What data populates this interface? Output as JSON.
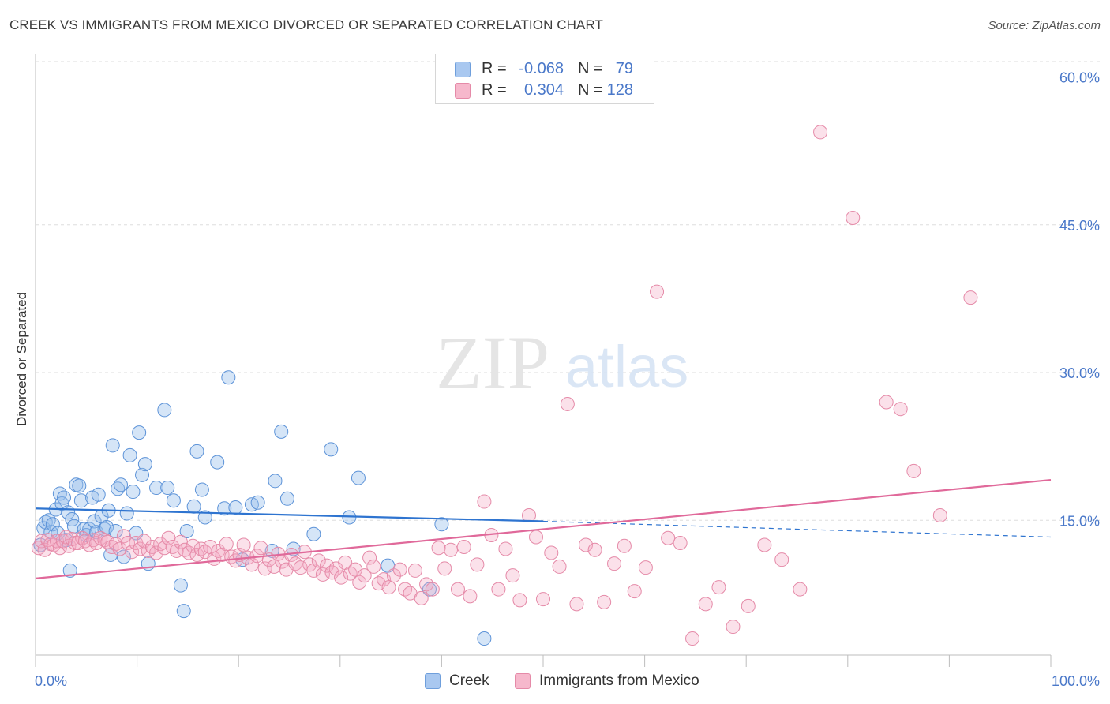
{
  "title": "CREEK VS IMMIGRANTS FROM MEXICO DIVORCED OR SEPARATED CORRELATION CHART",
  "source": "Source: ZipAtlas.com",
  "watermark": {
    "zip": "ZIP",
    "atlas": "atlas"
  },
  "legend": {
    "rows": [
      {
        "r_label": "R =",
        "r_value": "-0.068",
        "n_label": "N =",
        "n_value": "79",
        "color": "#a9c8f0",
        "border": "#6f9fdc"
      },
      {
        "r_label": "R =",
        "r_value": "0.304",
        "n_label": "N =",
        "n_value": "128",
        "color": "#f6b8cc",
        "border": "#e58aa8"
      }
    ]
  },
  "bottom_legend": [
    {
      "label": "Creek",
      "color": "#a9c8f0",
      "border": "#6f9fdc"
    },
    {
      "label": "Immigrants from Mexico",
      "color": "#f6b8cc",
      "border": "#e58aa8"
    }
  ],
  "colors": {
    "creek_line": "#2e74d0",
    "mexico_line": "#e0699a",
    "creek_fill": "rgba(150,190,235,0.40)",
    "creek_stroke": "#5d93d8",
    "mexico_fill": "rgba(244,170,195,0.35)",
    "mexico_stroke": "#e58aa8",
    "grid": "#dddddd",
    "tick_text": "#4a78c9"
  },
  "chart_data": {
    "type": "scatter",
    "xlabel": "",
    "ylabel": "Divorced or Separated",
    "x_tick_labels": [
      "0.0%",
      "100.0%"
    ],
    "y_tick_labels": [
      "15.0%",
      "30.0%",
      "45.0%",
      "60.0%"
    ],
    "y_ticks": [
      15,
      30,
      45,
      60
    ],
    "xlim": [
      0,
      100
    ],
    "ylim": [
      0,
      62
    ],
    "grid": true,
    "series": [
      {
        "name": "Creek",
        "trend": {
          "x": [
            0,
            50
          ],
          "y": [
            16.2,
            14.9
          ],
          "dashed_extension_to": [
            100,
            13.3
          ]
        },
        "points": [
          [
            0.5,
            12.5
          ],
          [
            0.8,
            14.2
          ],
          [
            1.0,
            14.8
          ],
          [
            1.3,
            15.0
          ],
          [
            1.5,
            13.8
          ],
          [
            1.7,
            14.6
          ],
          [
            2.0,
            16.1
          ],
          [
            2.2,
            13.7
          ],
          [
            2.4,
            17.7
          ],
          [
            2.6,
            16.7
          ],
          [
            2.8,
            17.3
          ],
          [
            3.0,
            13.0
          ],
          [
            3.2,
            15.8
          ],
          [
            3.4,
            9.9
          ],
          [
            3.6,
            15.1
          ],
          [
            3.8,
            14.4
          ],
          [
            4.0,
            18.6
          ],
          [
            4.3,
            18.5
          ],
          [
            4.5,
            17.0
          ],
          [
            4.8,
            14.1
          ],
          [
            5.0,
            13.5
          ],
          [
            5.3,
            14.1
          ],
          [
            5.6,
            17.3
          ],
          [
            5.8,
            14.9
          ],
          [
            6.0,
            13.8
          ],
          [
            6.2,
            17.6
          ],
          [
            6.5,
            15.4
          ],
          [
            6.8,
            14.1
          ],
          [
            7.0,
            14.3
          ],
          [
            7.2,
            16.0
          ],
          [
            7.4,
            11.5
          ],
          [
            7.6,
            22.6
          ],
          [
            7.9,
            13.9
          ],
          [
            8.1,
            18.2
          ],
          [
            8.4,
            18.6
          ],
          [
            8.7,
            11.3
          ],
          [
            9.0,
            15.7
          ],
          [
            9.3,
            21.6
          ],
          [
            9.6,
            17.9
          ],
          [
            9.9,
            13.7
          ],
          [
            10.2,
            23.9
          ],
          [
            10.5,
            19.6
          ],
          [
            10.8,
            20.7
          ],
          [
            11.1,
            10.6
          ],
          [
            11.9,
            18.3
          ],
          [
            12.7,
            26.2
          ],
          [
            13.0,
            18.3
          ],
          [
            13.6,
            17.0
          ],
          [
            14.3,
            8.4
          ],
          [
            14.6,
            5.8
          ],
          [
            14.9,
            13.9
          ],
          [
            15.6,
            16.4
          ],
          [
            15.9,
            22.0
          ],
          [
            16.4,
            18.1
          ],
          [
            16.7,
            15.3
          ],
          [
            17.9,
            20.9
          ],
          [
            18.6,
            16.2
          ],
          [
            19.0,
            29.5
          ],
          [
            19.7,
            16.3
          ],
          [
            20.4,
            11.0
          ],
          [
            21.3,
            16.6
          ],
          [
            21.9,
            16.8
          ],
          [
            23.3,
            11.9
          ],
          [
            23.6,
            19.0
          ],
          [
            24.2,
            24.0
          ],
          [
            24.8,
            17.2
          ],
          [
            25.4,
            12.1
          ],
          [
            27.4,
            13.6
          ],
          [
            29.1,
            22.2
          ],
          [
            30.9,
            15.3
          ],
          [
            31.8,
            19.3
          ],
          [
            34.7,
            10.4
          ],
          [
            38.8,
            8.0
          ],
          [
            40.0,
            14.6
          ],
          [
            44.2,
            3.0
          ]
        ]
      },
      {
        "name": "Immigrants from Mexico",
        "trend": {
          "x": [
            0,
            100
          ],
          "y": [
            9.1,
            19.1
          ]
        },
        "points": [
          [
            0.3,
            12.2
          ],
          [
            0.6,
            12.9
          ],
          [
            0.9,
            12.0
          ],
          [
            1.2,
            13.0
          ],
          [
            1.5,
            12.6
          ],
          [
            1.8,
            12.5
          ],
          [
            2.1,
            12.9
          ],
          [
            2.4,
            12.2
          ],
          [
            2.7,
            12.9
          ],
          [
            3.0,
            13.3
          ],
          [
            3.3,
            12.4
          ],
          [
            3.6,
            13.1
          ],
          [
            3.9,
            12.7
          ],
          [
            4.2,
            12.7
          ],
          [
            4.6,
            13.2
          ],
          [
            4.9,
            12.9
          ],
          [
            5.3,
            12.5
          ],
          [
            5.7,
            13.0
          ],
          [
            6.0,
            12.7
          ],
          [
            6.4,
            13.2
          ],
          [
            6.8,
            13.0
          ],
          [
            7.1,
            12.8
          ],
          [
            7.5,
            12.3
          ],
          [
            7.9,
            12.6
          ],
          [
            8.3,
            12.1
          ],
          [
            8.7,
            13.4
          ],
          [
            9.1,
            12.7
          ],
          [
            9.5,
            11.8
          ],
          [
            9.9,
            12.7
          ],
          [
            10.3,
            12.1
          ],
          [
            10.7,
            12.9
          ],
          [
            11.1,
            11.9
          ],
          [
            11.5,
            12.3
          ],
          [
            11.9,
            11.7
          ],
          [
            12.3,
            12.6
          ],
          [
            12.7,
            12.2
          ],
          [
            13.1,
            13.2
          ],
          [
            13.5,
            12.3
          ],
          [
            13.9,
            11.9
          ],
          [
            14.3,
            12.8
          ],
          [
            14.7,
            12.0
          ],
          [
            15.1,
            11.7
          ],
          [
            15.5,
            12.4
          ],
          [
            15.9,
            11.5
          ],
          [
            16.3,
            12.1
          ],
          [
            16.7,
            11.8
          ],
          [
            17.2,
            12.3
          ],
          [
            17.6,
            11.1
          ],
          [
            18.0,
            11.9
          ],
          [
            18.4,
            11.5
          ],
          [
            18.8,
            12.6
          ],
          [
            19.3,
            11.3
          ],
          [
            19.7,
            10.9
          ],
          [
            20.1,
            11.5
          ],
          [
            20.5,
            12.5
          ],
          [
            20.9,
            11.2
          ],
          [
            21.3,
            10.5
          ],
          [
            21.8,
            11.4
          ],
          [
            22.2,
            12.2
          ],
          [
            22.6,
            10.1
          ],
          [
            23.0,
            11.0
          ],
          [
            23.5,
            10.3
          ],
          [
            23.9,
            11.6
          ],
          [
            24.3,
            10.8
          ],
          [
            24.7,
            10.0
          ],
          [
            25.2,
            11.5
          ],
          [
            25.6,
            10.6
          ],
          [
            26.1,
            10.2
          ],
          [
            26.5,
            11.8
          ],
          [
            27.0,
            10.5
          ],
          [
            27.4,
            9.9
          ],
          [
            27.9,
            10.9
          ],
          [
            28.3,
            9.5
          ],
          [
            28.7,
            10.4
          ],
          [
            29.2,
            9.7
          ],
          [
            29.6,
            10.1
          ],
          [
            30.1,
            9.2
          ],
          [
            30.5,
            10.7
          ],
          [
            31.0,
            9.6
          ],
          [
            31.5,
            10.0
          ],
          [
            31.9,
            8.7
          ],
          [
            32.4,
            9.4
          ],
          [
            32.9,
            11.2
          ],
          [
            33.3,
            10.3
          ],
          [
            33.8,
            8.6
          ],
          [
            34.3,
            9.0
          ],
          [
            34.8,
            8.2
          ],
          [
            35.3,
            9.4
          ],
          [
            35.9,
            10.0
          ],
          [
            36.4,
            8.0
          ],
          [
            36.9,
            7.6
          ],
          [
            37.4,
            9.9
          ],
          [
            38.0,
            7.1
          ],
          [
            38.5,
            8.5
          ],
          [
            39.1,
            8.0
          ],
          [
            39.7,
            12.2
          ],
          [
            40.3,
            10.1
          ],
          [
            40.9,
            12.0
          ],
          [
            41.6,
            8.0
          ],
          [
            42.2,
            12.3
          ],
          [
            42.8,
            7.3
          ],
          [
            43.5,
            10.5
          ],
          [
            44.2,
            16.9
          ],
          [
            44.9,
            13.5
          ],
          [
            45.6,
            8.0
          ],
          [
            46.3,
            12.1
          ],
          [
            47.0,
            9.4
          ],
          [
            47.7,
            6.9
          ],
          [
            48.6,
            15.5
          ],
          [
            49.3,
            13.3
          ],
          [
            50.0,
            7.0
          ],
          [
            50.8,
            11.7
          ],
          [
            51.6,
            10.3
          ],
          [
            52.4,
            26.8
          ],
          [
            53.3,
            6.5
          ],
          [
            54.2,
            12.5
          ],
          [
            55.1,
            12.0
          ],
          [
            56.0,
            6.7
          ],
          [
            57.0,
            10.6
          ],
          [
            58.0,
            12.4
          ],
          [
            59.0,
            7.8
          ],
          [
            60.1,
            10.2
          ],
          [
            61.2,
            38.2
          ],
          [
            62.3,
            13.2
          ],
          [
            63.5,
            12.7
          ],
          [
            64.7,
            3.0
          ],
          [
            66.0,
            6.5
          ],
          [
            67.3,
            8.2
          ],
          [
            68.7,
            4.2
          ],
          [
            70.2,
            6.3
          ],
          [
            71.8,
            12.5
          ],
          [
            73.5,
            11.0
          ],
          [
            75.3,
            8.0
          ],
          [
            77.3,
            54.4
          ],
          [
            80.5,
            45.7
          ],
          [
            83.8,
            27.0
          ],
          [
            85.2,
            26.3
          ],
          [
            86.5,
            20.0
          ],
          [
            89.1,
            15.5
          ],
          [
            92.1,
            37.6
          ]
        ]
      }
    ]
  }
}
